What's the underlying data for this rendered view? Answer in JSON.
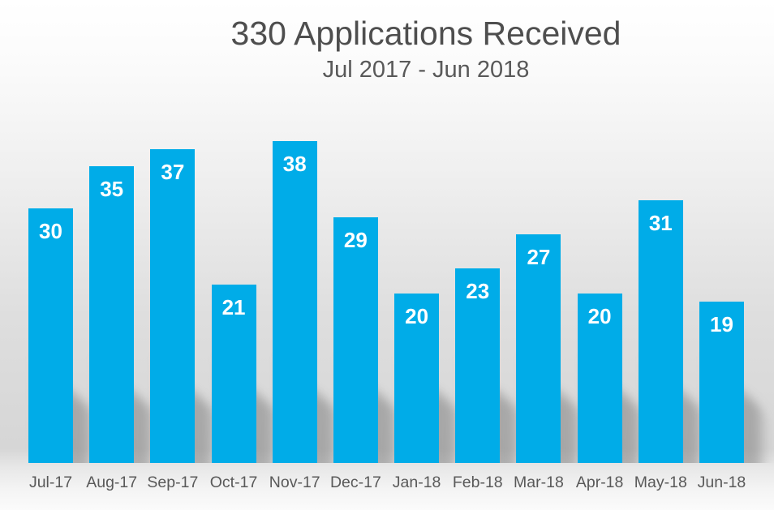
{
  "header": {
    "title": "330 Applications Received",
    "subtitle": "Jul 2017 - Jun 2018"
  },
  "colors": {
    "bar": "#00ACE8",
    "title_text": "#4E4E4E",
    "subtitle_text": "#595959",
    "axis_text": "#595959",
    "value_label_text": "#FFFFFF",
    "background_top": "#FFFFFF",
    "background_mid": "#D6D6D6",
    "background_bottom": "#FBFBFB"
  },
  "chart_data": {
    "type": "bar",
    "title": "330 Applications Received",
    "subtitle": "Jul 2017 - Jun 2018",
    "total": 330,
    "categories": [
      "Jul-17",
      "Aug-17",
      "Sep-17",
      "Oct-17",
      "Nov-17",
      "Dec-17",
      "Jan-18",
      "Feb-18",
      "Mar-18",
      "Apr-18",
      "May-18",
      "Jun-18"
    ],
    "values": [
      30,
      35,
      37,
      21,
      38,
      29,
      20,
      23,
      27,
      20,
      31,
      19
    ],
    "xlabel": "",
    "ylabel": "",
    "ylim": [
      0,
      40
    ],
    "grid": false,
    "legend": false,
    "y_axis_visible": false,
    "data_labels_position": "inside-end"
  }
}
